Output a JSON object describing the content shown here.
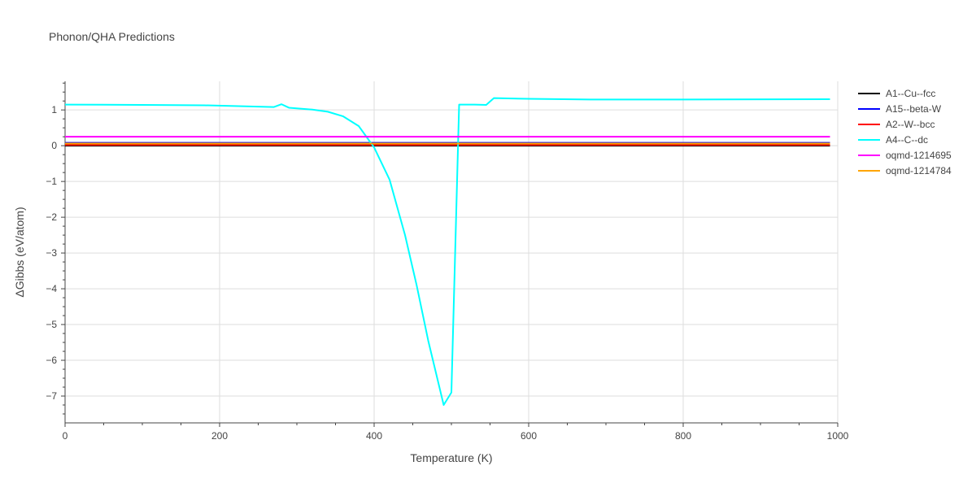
{
  "chart_data": {
    "type": "line",
    "title": "Phonon/QHA Predictions",
    "xlabel": "Temperature (K)",
    "ylabel": "ΔGibbs (eV/atom)",
    "xlim": [
      0,
      1000
    ],
    "ylim": [
      -7.75,
      1.8
    ],
    "xticks": [
      0,
      200,
      400,
      600,
      800,
      1000
    ],
    "xtick_labels": [
      "0",
      "200",
      "400",
      "600",
      "800",
      "1000"
    ],
    "yticks": [
      1,
      0,
      -1,
      -2,
      -3,
      -4,
      -5,
      -6,
      -7
    ],
    "ytick_labels": [
      "1",
      "0",
      "−1",
      "−2",
      "−3",
      "−4",
      "−5",
      "−6",
      "−7"
    ],
    "grid": true,
    "legend_position": "right",
    "series": [
      {
        "name": "A1--Cu--fcc",
        "color": "#000000",
        "x": [
          0,
          990
        ],
        "y": [
          0,
          0
        ]
      },
      {
        "name": "A15--beta-W",
        "color": "#0000ff",
        "x": [
          0,
          990
        ],
        "y": [
          0.08,
          0.08
        ]
      },
      {
        "name": "A2--W--bcc",
        "color": "#ff0000",
        "x": [
          0,
          990
        ],
        "y": [
          0.02,
          0.02
        ]
      },
      {
        "name": "A4--C--dc",
        "color": "#00ffff",
        "x": [
          0,
          100,
          180,
          270,
          280,
          290,
          320,
          340,
          360,
          380,
          400,
          420,
          440,
          455,
          470,
          490,
          500,
          510,
          530,
          545,
          555,
          600,
          680,
          800,
          990
        ],
        "y": [
          1.15,
          1.14,
          1.13,
          1.08,
          1.16,
          1.06,
          1.01,
          0.95,
          0.82,
          0.55,
          -0.05,
          -0.95,
          -2.5,
          -3.9,
          -5.45,
          -7.25,
          -6.9,
          1.15,
          1.15,
          1.14,
          1.33,
          1.31,
          1.29,
          1.29,
          1.3
        ]
      },
      {
        "name": "oqmd-1214695",
        "color": "#ff00ff",
        "x": [
          0,
          990
        ],
        "y": [
          0.25,
          0.25
        ]
      },
      {
        "name": "oqmd-1214784",
        "color": "#ffa500",
        "x": [
          0,
          990
        ],
        "y": [
          0.06,
          0.06
        ]
      }
    ]
  }
}
